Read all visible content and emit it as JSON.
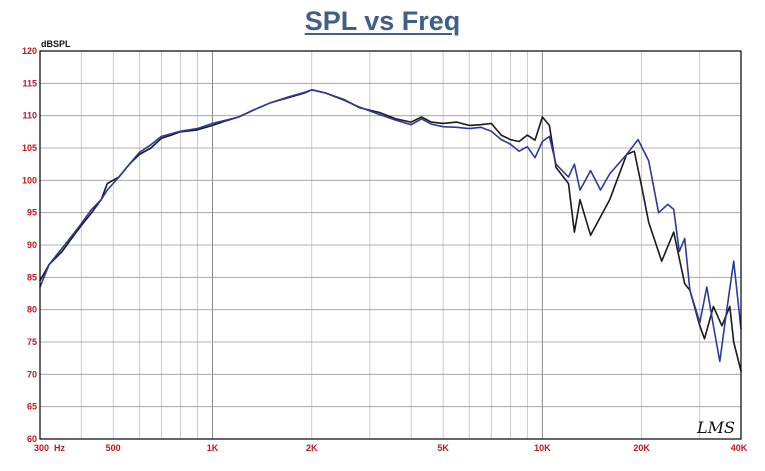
{
  "chart_data": {
    "type": "line",
    "title": "SPL vs Freq",
    "ylabel": "dBSPL",
    "xlabel": "",
    "x_scale": "log",
    "xlim": [
      300,
      40000
    ],
    "ylim": [
      60,
      120
    ],
    "grid": true,
    "x_tick_labels": [
      {
        "value": 300,
        "label": "300  Hz"
      },
      {
        "value": 500,
        "label": "500"
      },
      {
        "value": 1000,
        "label": "1K"
      },
      {
        "value": 2000,
        "label": "2K"
      },
      {
        "value": 5000,
        "label": "5K"
      },
      {
        "value": 10000,
        "label": "10K"
      },
      {
        "value": 20000,
        "label": "20K"
      },
      {
        "value": 40000,
        "label": "40K"
      }
    ],
    "y_ticks": [
      60,
      65,
      70,
      75,
      80,
      85,
      90,
      95,
      100,
      105,
      110,
      115,
      120
    ],
    "watermark": "LMS",
    "series": [
      {
        "color": "#1a1a1a",
        "points": [
          [
            300,
            84.5
          ],
          [
            320,
            87
          ],
          [
            350,
            89
          ],
          [
            380,
            91.5
          ],
          [
            400,
            93
          ],
          [
            430,
            95
          ],
          [
            460,
            97
          ],
          [
            480,
            99.5
          ],
          [
            520,
            100.5
          ],
          [
            560,
            102.5
          ],
          [
            600,
            104
          ],
          [
            650,
            105
          ],
          [
            700,
            106.5
          ],
          [
            750,
            107
          ],
          [
            800,
            107.5
          ],
          [
            900,
            107.8
          ],
          [
            1000,
            108.5
          ],
          [
            1100,
            109.2
          ],
          [
            1200,
            109.8
          ],
          [
            1350,
            111
          ],
          [
            1500,
            112
          ],
          [
            1700,
            112.8
          ],
          [
            1900,
            113.5
          ],
          [
            2000,
            114
          ],
          [
            2200,
            113.5
          ],
          [
            2500,
            112.5
          ],
          [
            2800,
            111.2
          ],
          [
            3200,
            110.5
          ],
          [
            3600,
            109.5
          ],
          [
            4000,
            109
          ],
          [
            4300,
            109.8
          ],
          [
            4600,
            109
          ],
          [
            5000,
            108.8
          ],
          [
            5500,
            109
          ],
          [
            6000,
            108.5
          ],
          [
            6500,
            108.6
          ],
          [
            7000,
            108.8
          ],
          [
            7500,
            107
          ],
          [
            8000,
            106.3
          ],
          [
            8500,
            106
          ],
          [
            9000,
            107
          ],
          [
            9500,
            106.2
          ],
          [
            10000,
            109.8
          ],
          [
            10500,
            108.5
          ],
          [
            11000,
            102
          ],
          [
            12000,
            99.5
          ],
          [
            12500,
            92
          ],
          [
            13000,
            97
          ],
          [
            14000,
            91.5
          ],
          [
            16000,
            97
          ],
          [
            18000,
            104
          ],
          [
            19000,
            104.5
          ],
          [
            20000,
            99
          ],
          [
            21000,
            93.5
          ],
          [
            23000,
            87.5
          ],
          [
            25000,
            92
          ],
          [
            27000,
            84
          ],
          [
            28000,
            83
          ],
          [
            30000,
            77.5
          ],
          [
            31000,
            75.5
          ],
          [
            33000,
            80.5
          ],
          [
            35000,
            77.5
          ],
          [
            37000,
            80.5
          ],
          [
            38000,
            75
          ],
          [
            40000,
            70.5
          ]
        ]
      },
      {
        "color": "#2a3aa0",
        "points": [
          [
            300,
            83.5
          ],
          [
            320,
            87
          ],
          [
            350,
            89.5
          ],
          [
            380,
            91.8
          ],
          [
            400,
            93.3
          ],
          [
            430,
            95.5
          ],
          [
            460,
            97
          ],
          [
            480,
            98.5
          ],
          [
            520,
            100.5
          ],
          [
            560,
            102.5
          ],
          [
            600,
            104.3
          ],
          [
            650,
            105.5
          ],
          [
            700,
            106.8
          ],
          [
            750,
            107.2
          ],
          [
            800,
            107.6
          ],
          [
            900,
            108
          ],
          [
            1000,
            108.8
          ],
          [
            1100,
            109.3
          ],
          [
            1200,
            109.8
          ],
          [
            1350,
            111
          ],
          [
            1500,
            112
          ],
          [
            1700,
            112.9
          ],
          [
            1900,
            113.6
          ],
          [
            2000,
            114
          ],
          [
            2200,
            113.5
          ],
          [
            2500,
            112.4
          ],
          [
            2800,
            111.3
          ],
          [
            3200,
            110.2
          ],
          [
            3600,
            109.3
          ],
          [
            4000,
            108.6
          ],
          [
            4300,
            109.5
          ],
          [
            4600,
            108.7
          ],
          [
            5000,
            108.3
          ],
          [
            5500,
            108.2
          ],
          [
            6000,
            108
          ],
          [
            6500,
            108.2
          ],
          [
            7000,
            107.6
          ],
          [
            7500,
            106.3
          ],
          [
            8000,
            105.6
          ],
          [
            8500,
            104.5
          ],
          [
            9000,
            105.2
          ],
          [
            9500,
            103.5
          ],
          [
            10000,
            106
          ],
          [
            10500,
            106.8
          ],
          [
            11000,
            102.5
          ],
          [
            12000,
            100.5
          ],
          [
            12500,
            102.5
          ],
          [
            13000,
            98.5
          ],
          [
            14000,
            101.5
          ],
          [
            15000,
            98.5
          ],
          [
            16000,
            101
          ],
          [
            18000,
            104
          ],
          [
            19500,
            106.3
          ],
          [
            21000,
            103
          ],
          [
            22500,
            95
          ],
          [
            24000,
            96.3
          ],
          [
            25000,
            95.5
          ],
          [
            26000,
            89
          ],
          [
            27000,
            91
          ],
          [
            28000,
            83
          ],
          [
            30000,
            78
          ],
          [
            31500,
            83.5
          ],
          [
            33000,
            77.5
          ],
          [
            34500,
            72
          ],
          [
            36000,
            79
          ],
          [
            38000,
            87.5
          ],
          [
            40000,
            77
          ]
        ]
      }
    ]
  }
}
